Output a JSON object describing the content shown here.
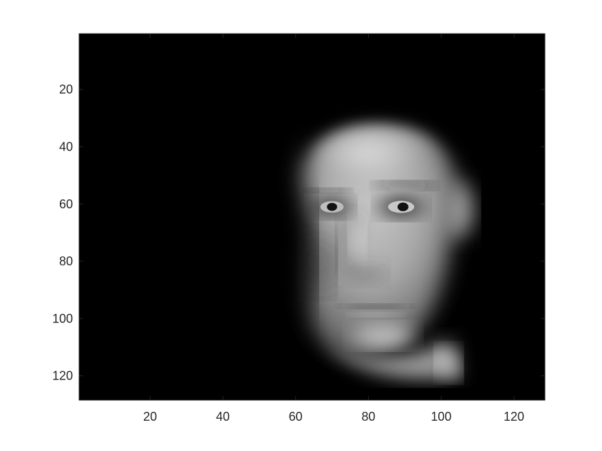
{
  "chart_data": {
    "type": "heatmap",
    "title": "",
    "xlabel": "",
    "ylabel": "",
    "image_size": [
      128,
      128
    ],
    "xlim": [
      0.5,
      128.5
    ],
    "ylim": [
      0.5,
      128.5
    ],
    "y_reversed": true,
    "colormap": "gray",
    "grid": false,
    "xticks": [
      20,
      40,
      60,
      80,
      100,
      120
    ],
    "yticks": [
      20,
      40,
      60,
      80,
      100,
      120
    ],
    "xtick_labels": [
      "20",
      "40",
      "60",
      "80",
      "100",
      "120"
    ],
    "ytick_labels": [
      "20",
      "40",
      "60",
      "80",
      "100",
      "120"
    ],
    "content": "grayscale face-portrait-icon",
    "colors": {
      "background": "#000000",
      "axis": "#262626"
    }
  }
}
